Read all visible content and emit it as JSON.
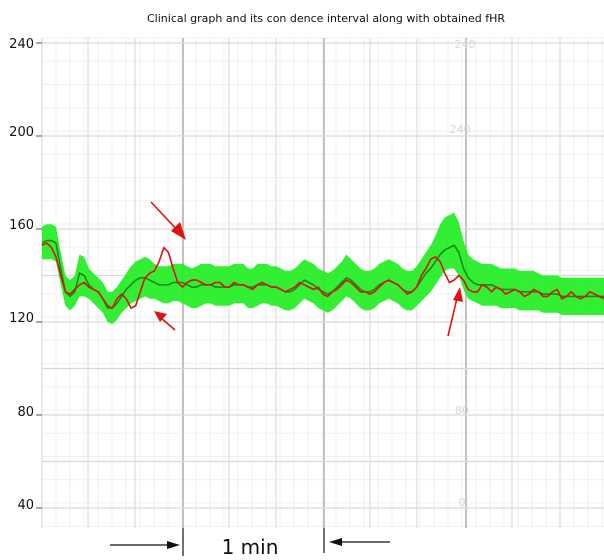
{
  "chart_data": {
    "type": "line",
    "title": "Clinical graph and its con  dence interval along with obtained fHR",
    "xlabel": "",
    "ylabel": "",
    "ylim": [
      30,
      240
    ],
    "yticks": [
      40,
      80,
      120,
      160,
      200,
      240
    ],
    "scale_bar_label": "1 min",
    "paper_tick_labels": [
      "240",
      "80",
      "0"
    ],
    "series": [
      {
        "kind": "confidence-interval",
        "color": "#22ee22",
        "x": [
          0,
          1,
          2,
          3,
          4,
          5,
          6,
          7,
          8,
          9,
          10,
          11,
          12,
          13,
          14,
          15,
          16,
          17,
          18,
          19,
          20,
          21,
          22,
          23,
          24,
          25,
          26,
          27,
          28,
          29,
          30,
          31,
          32,
          33,
          34,
          35,
          36,
          37,
          38,
          39,
          40,
          41,
          42,
          43,
          44,
          45,
          46,
          47,
          48,
          49,
          50,
          51,
          52,
          53,
          54,
          55,
          56,
          57,
          58,
          59,
          60,
          61,
          62,
          63,
          64,
          65,
          66,
          67,
          68,
          69,
          70,
          71,
          72,
          73,
          74,
          75,
          76,
          77,
          78,
          79,
          80,
          81,
          82,
          83,
          84,
          85,
          86,
          87,
          88,
          89,
          90,
          91,
          92,
          93,
          94,
          95,
          96,
          97,
          98,
          99,
          100,
          101,
          102,
          103,
          104,
          105,
          106,
          107,
          108,
          109,
          110,
          111,
          112,
          113,
          114,
          115,
          116,
          117,
          118,
          119,
          120
        ],
        "center": [
          154,
          155,
          155,
          154,
          143,
          133,
          131,
          133,
          141,
          140,
          136,
          134,
          133,
          130,
          126,
          126,
          128,
          131,
          134,
          136,
          138,
          139,
          139,
          138,
          137,
          136,
          136,
          136,
          137,
          137,
          137,
          136,
          135,
          135,
          136,
          136,
          136,
          135,
          135,
          135,
          135,
          136,
          136,
          136,
          135,
          135,
          136,
          136,
          136,
          135,
          135,
          134,
          133,
          133,
          134,
          136,
          138,
          137,
          136,
          134,
          133,
          132,
          133,
          135,
          137,
          139,
          138,
          136,
          134,
          133,
          133,
          134,
          136,
          137,
          138,
          137,
          136,
          134,
          133,
          133,
          135,
          138,
          141,
          143,
          146,
          149,
          151,
          152,
          153,
          150,
          143,
          139,
          137,
          136,
          136,
          136,
          136,
          135,
          134,
          134,
          134,
          134,
          133,
          133,
          133,
          133,
          133,
          132,
          132,
          132,
          132,
          131,
          131,
          131,
          131,
          131,
          131,
          131,
          131,
          131,
          131
        ],
        "lower": [
          147,
          147,
          147,
          146,
          136,
          127,
          125,
          127,
          131,
          131,
          130,
          128,
          126,
          124,
          120,
          119,
          121,
          124,
          126,
          128,
          129,
          130,
          131,
          130,
          130,
          129,
          128,
          128,
          129,
          129,
          128,
          127,
          126,
          126,
          127,
          128,
          128,
          127,
          127,
          127,
          127,
          128,
          128,
          128,
          126,
          126,
          127,
          128,
          128,
          127,
          127,
          126,
          125,
          125,
          126,
          128,
          130,
          129,
          128,
          126,
          125,
          124,
          125,
          127,
          129,
          131,
          130,
          128,
          126,
          125,
          125,
          126,
          128,
          129,
          130,
          129,
          128,
          126,
          125,
          125,
          127,
          129,
          131,
          133,
          136,
          139,
          142,
          143,
          143,
          140,
          134,
          130,
          129,
          128,
          127,
          127,
          127,
          127,
          126,
          126,
          126,
          126,
          125,
          125,
          125,
          125,
          125,
          124,
          124,
          124,
          124,
          123,
          123,
          123,
          123,
          123,
          123,
          123,
          123,
          123,
          123
        ],
        "upper": [
          161,
          162,
          162,
          161,
          150,
          140,
          138,
          140,
          149,
          148,
          143,
          141,
          139,
          137,
          133,
          133,
          135,
          138,
          141,
          144,
          146,
          147,
          148,
          147,
          145,
          144,
          144,
          144,
          145,
          145,
          145,
          144,
          143,
          144,
          145,
          145,
          145,
          144,
          144,
          144,
          144,
          145,
          145,
          145,
          143,
          143,
          145,
          145,
          145,
          144,
          144,
          143,
          142,
          142,
          143,
          145,
          147,
          146,
          145,
          143,
          142,
          141,
          142,
          144,
          146,
          149,
          147,
          145,
          143,
          142,
          142,
          143,
          145,
          146,
          147,
          146,
          145,
          143,
          142,
          142,
          144,
          147,
          150,
          153,
          157,
          162,
          165,
          166,
          167,
          163,
          155,
          149,
          147,
          146,
          145,
          145,
          145,
          144,
          143,
          143,
          143,
          143,
          142,
          142,
          142,
          142,
          141,
          140,
          140,
          140,
          140,
          139,
          139,
          139,
          139,
          139,
          139,
          139,
          139,
          139,
          139
        ]
      },
      {
        "kind": "obtained-fHR",
        "color": "#dd1111",
        "x": [
          0,
          1,
          2,
          3,
          4,
          5,
          6,
          7,
          8,
          9,
          10,
          11,
          12,
          13,
          14,
          15,
          16,
          17,
          18,
          19,
          20,
          21,
          22,
          23,
          24,
          25,
          26,
          27,
          28,
          29,
          30,
          31,
          32,
          33,
          34,
          35,
          36,
          37,
          38,
          39,
          40,
          41,
          42,
          43,
          44,
          45,
          46,
          47,
          48,
          49,
          50,
          51,
          52,
          53,
          54,
          55,
          56,
          57,
          58,
          59,
          60,
          61,
          62,
          63,
          64,
          65,
          66,
          67,
          68,
          69,
          70,
          71,
          72,
          73,
          74,
          75,
          76,
          77,
          78,
          79,
          80,
          81,
          82,
          83,
          84,
          85,
          86,
          87,
          88,
          89,
          90,
          91,
          92,
          93,
          94,
          95,
          96,
          97,
          98,
          99,
          100,
          101,
          102,
          103,
          104,
          105,
          106,
          107,
          108,
          109,
          110,
          111,
          112,
          113,
          114,
          115,
          116,
          117,
          118,
          119,
          120
        ],
        "y": [
          153,
          154,
          152,
          148,
          140,
          133,
          132,
          134,
          136,
          137,
          135,
          134,
          133,
          130,
          127,
          126,
          130,
          132,
          130,
          126,
          127,
          133,
          139,
          141,
          142,
          146,
          152,
          150,
          143,
          137,
          135,
          137,
          138,
          138,
          137,
          136,
          136,
          137,
          137,
          135,
          135,
          137,
          136,
          136,
          135,
          134,
          136,
          137,
          136,
          135,
          135,
          134,
          133,
          134,
          135,
          137,
          136,
          135,
          134,
          135,
          132,
          131,
          133,
          134,
          136,
          138,
          137,
          135,
          133,
          133,
          132,
          133,
          135,
          137,
          138,
          137,
          136,
          134,
          132,
          133,
          135,
          140,
          143,
          147,
          148,
          146,
          141,
          137,
          138,
          140,
          138,
          134,
          133,
          133,
          136,
          135,
          133,
          135,
          134,
          132,
          133,
          134,
          133,
          131,
          132,
          134,
          133,
          131,
          131,
          133,
          134,
          130,
          131,
          133,
          131,
          130,
          131,
          133,
          132,
          131,
          130
        ]
      }
    ],
    "annotations": [
      {
        "type": "arrow",
        "color": "red"
      },
      {
        "type": "arrow",
        "color": "red"
      },
      {
        "type": "arrow",
        "color": "red"
      }
    ]
  }
}
